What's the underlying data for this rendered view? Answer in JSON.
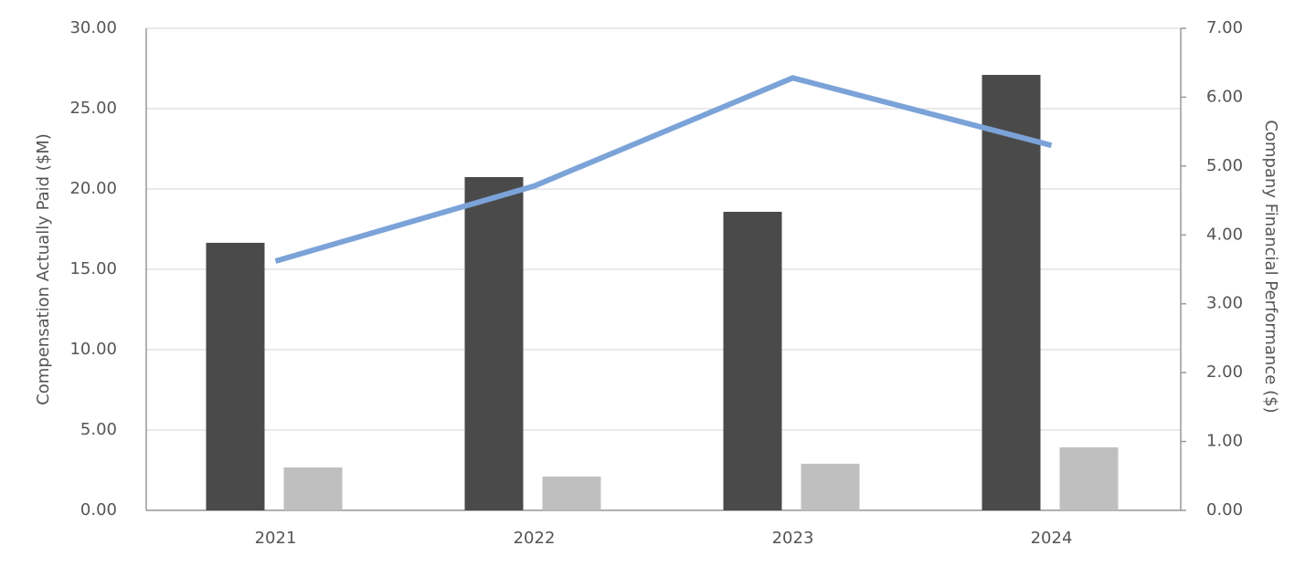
{
  "chart_data": {
    "type": "combo",
    "y_label": "Compensation Actually Paid ($M)",
    "y2_label": "Company Financial Performance ($)",
    "categories": [
      "2021",
      "2022",
      "2023",
      "2024"
    ],
    "series": [
      {
        "type": "bar",
        "color": "#4a4a4a",
        "values": [
          16.65,
          20.74,
          18.58,
          27.1
        ]
      },
      {
        "type": "bar",
        "color": "#bfbfbf",
        "values": [
          2.67,
          2.1,
          2.9,
          3.92
        ]
      },
      {
        "type": "line",
        "axis": "y2",
        "color": "#7ba3d8",
        "values": [
          3.62,
          4.71,
          6.28,
          5.3
        ]
      }
    ],
    "ylim": [
      0,
      30
    ],
    "yticks": [
      {
        "value": 0,
        "label": "0.00"
      },
      {
        "value": 5,
        "label": "5.00"
      },
      {
        "value": 10,
        "label": "10.00"
      },
      {
        "value": 15,
        "label": "15.00"
      },
      {
        "value": 20,
        "label": "20.00"
      },
      {
        "value": 25,
        "label": "25.00"
      },
      {
        "value": 30,
        "label": "30.00"
      }
    ],
    "y2lim": [
      0,
      7
    ],
    "y2ticks": [
      {
        "value": 0,
        "label": "0.00"
      },
      {
        "value": 1,
        "label": "1.00"
      },
      {
        "value": 2,
        "label": "2.00"
      },
      {
        "value": 3,
        "label": "3.00"
      },
      {
        "value": 4,
        "label": "4.00"
      },
      {
        "value": 5,
        "label": "5.00"
      },
      {
        "value": 6,
        "label": "6.00"
      },
      {
        "value": 7,
        "label": "7.00"
      }
    ],
    "grid": true
  }
}
